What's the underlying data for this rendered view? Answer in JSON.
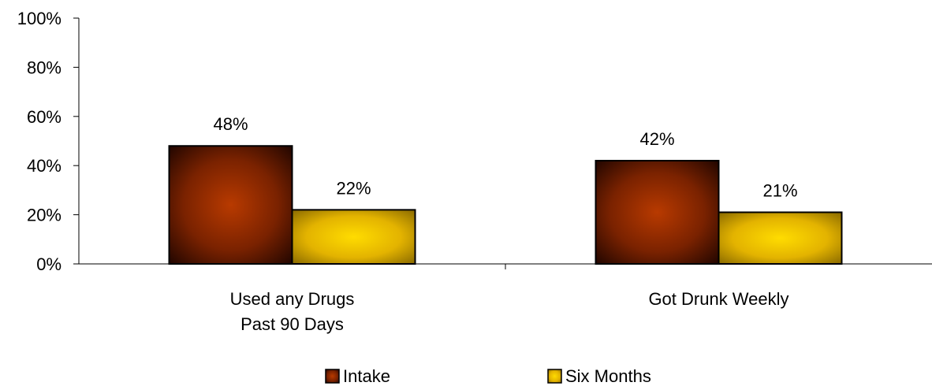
{
  "chart_data": {
    "type": "bar",
    "categories": [
      [
        "Used any Drugs",
        "Past 90 Days"
      ],
      [
        "Got Drunk Weekly"
      ]
    ],
    "series": [
      {
        "name": "Intake",
        "values": [
          48,
          42
        ],
        "labels": [
          "48%",
          "42%"
        ],
        "color": "#a63300",
        "edge": "#2a0800"
      },
      {
        "name": "Six Months",
        "values": [
          22,
          21
        ],
        "labels": [
          "22%",
          "21%"
        ],
        "color": "#ffd21a",
        "edge": "#8a6d00"
      }
    ],
    "ylim": [
      0,
      100
    ],
    "yticks": [
      0,
      20,
      40,
      60,
      80,
      100
    ],
    "ytick_labels": [
      "0%",
      "20%",
      "40%",
      "60%",
      "80%",
      "100%"
    ],
    "grid": false,
    "legend_position": "bottom-center",
    "title": "",
    "xlabel": "",
    "ylabel": ""
  }
}
